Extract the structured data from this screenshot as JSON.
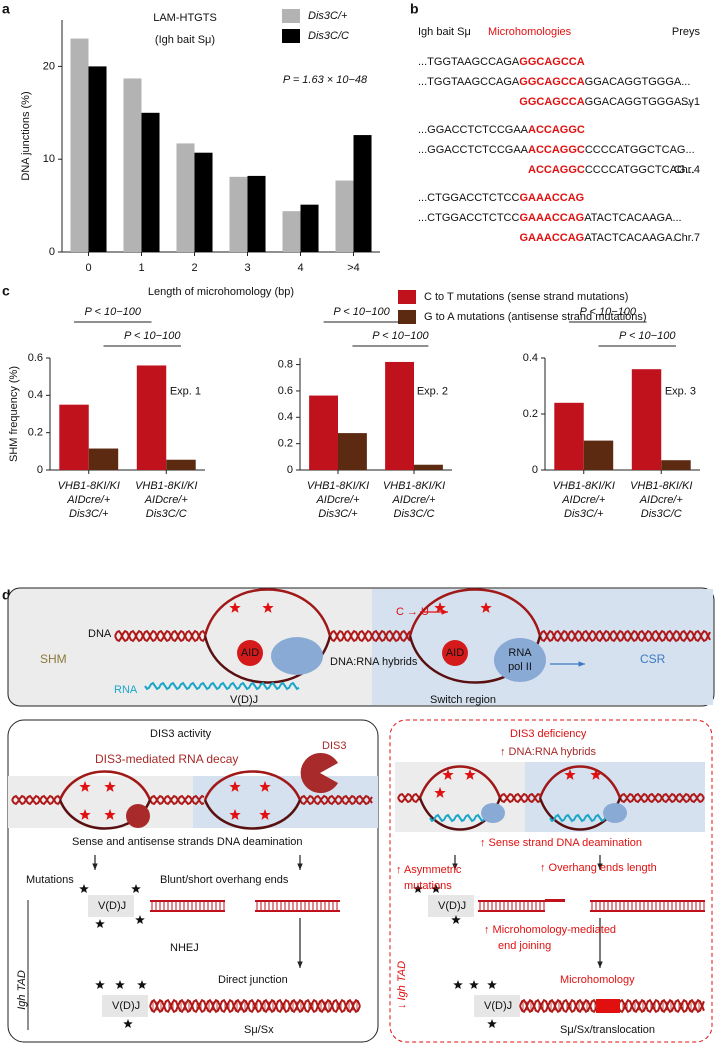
{
  "panel_labels": [
    "a",
    "b",
    "c",
    "d"
  ],
  "chart_data": [
    {
      "type": "bar",
      "annotations": [
        "LAM-HTGTS",
        "(Igh bait Sμ)",
        "P = 1.63 × 10−48"
      ],
      "categories": [
        "0",
        "1",
        "2",
        "3",
        "4",
        ">4"
      ],
      "series": [
        {
          "name": "Dis3C/+",
          "color": "#b3b3b3",
          "values": [
            23,
            18.7,
            11.7,
            8.1,
            4.4,
            7.7
          ]
        },
        {
          "name": "Dis3C/C",
          "color": "#000000",
          "values": [
            20,
            15,
            10.7,
            8.2,
            5.1,
            12.6
          ]
        }
      ],
      "xlabel": "Length of microhomology (bp)",
      "ylabel": "DNA junctions (%)",
      "ylim": [
        0,
        25
      ],
      "yticks": [
        0,
        10,
        20
      ]
    },
    {
      "type": "bar",
      "annotations": [
        "P < 10−100",
        "P < 10−100",
        "Exp. 1"
      ],
      "categories": [
        [
          "VHB1-8KI/KI",
          "AIDcre/+",
          "Dis3C/+"
        ],
        [
          "VHB1-8KI/KI",
          "AIDcre/+",
          "Dis3C/C"
        ]
      ],
      "series": [
        {
          "name": "C to T mutations (sense strand mutations)",
          "color": "#c0121c",
          "values": [
            0.35,
            0.56
          ]
        },
        {
          "name": "G to A mutations (antisense strand mutations)",
          "color": "#5b2a10",
          "values": [
            0.115,
            0.055
          ]
        }
      ],
      "ylabel": "SHM frequency (%)",
      "ylim": [
        0,
        0.6
      ],
      "yticks": [
        0,
        0.2,
        0.4,
        0.6
      ]
    },
    {
      "type": "bar",
      "annotations": [
        "P < 10−100",
        "P < 10−100",
        "Exp. 2"
      ],
      "categories": [
        [
          "VHB1-8KI/KI",
          "AIDcre/+",
          "Dis3C/+"
        ],
        [
          "VHB1-8KI/KI",
          "AIDcre/+",
          "Dis3C/C"
        ]
      ],
      "series": [
        {
          "color": "#c0121c",
          "values": [
            0.565,
            0.82
          ]
        },
        {
          "color": "#5b2a10",
          "values": [
            0.28,
            0.04
          ]
        }
      ],
      "ylim": [
        0,
        0.85
      ],
      "yticks": [
        0,
        0.2,
        0.4,
        0.6,
        0.8
      ]
    },
    {
      "type": "bar",
      "annotations": [
        "P < 10−100",
        "P < 10−100",
        "Exp. 3"
      ],
      "categories": [
        [
          "VHB1-8KI/KI",
          "AIDcre/+",
          "Dis3C/+"
        ],
        [
          "VHB1-8KI/KI",
          "AIDcre/+",
          "Dis3C/C"
        ]
      ],
      "series": [
        {
          "color": "#c0121c",
          "values": [
            0.24,
            0.36
          ]
        },
        {
          "color": "#5b2a10",
          "values": [
            0.105,
            0.035
          ]
        }
      ],
      "ylim": [
        0,
        0.4
      ],
      "yticks": [
        0,
        0.2,
        0.4
      ]
    }
  ],
  "sequences": {
    "headers": [
      "Igh bait Sμ",
      "Microhomologies",
      "Preys"
    ],
    "groups": [
      {
        "prey": "Sγ1",
        "lines": [
          [
            {
              "text": "...TGGTAAGCCAGA"
            },
            {
              "text": "GGCAGCCA",
              "highlight": true
            }
          ],
          [
            {
              "text": "...TGGTAAGCCAGA"
            },
            {
              "text": "GGCAGCCA",
              "highlight": true
            },
            {
              "text": "GGACAGGTGGGA..."
            }
          ],
          [
            {
              "text": "GGCAGCCA",
              "highlight": true
            },
            {
              "text": "GGACAGGTGGGA..."
            }
          ]
        ]
      },
      {
        "prey": "Chr.4",
        "lines": [
          [
            {
              "text": "...GGACCTCTCCGAA"
            },
            {
              "text": "ACCAGGC",
              "highlight": true
            }
          ],
          [
            {
              "text": "...GGACCTCTCCGAA"
            },
            {
              "text": "ACCAGGC",
              "highlight": true
            },
            {
              "text": "CCCCATGGCTCAG..."
            }
          ],
          [
            {
              "text": "ACCAGGC",
              "highlight": true
            },
            {
              "text": "CCCCATGGCTCAG..."
            }
          ]
        ]
      },
      {
        "prey": "Chr.7",
        "lines": [
          [
            {
              "text": "...CTGGACCTCTCC"
            },
            {
              "text": "GAAACCAG",
              "highlight": true
            }
          ],
          [
            {
              "text": "...CTGGACCTCTCC"
            },
            {
              "text": "GAAACCAG",
              "highlight": true
            },
            {
              "text": "ATACTCACAAGA..."
            }
          ],
          [
            {
              "text": "GAAACCAG",
              "highlight": true
            },
            {
              "text": "ATACTCACAAGA..."
            }
          ]
        ]
      }
    ]
  },
  "diagram": {
    "top": {
      "shm": "SHM",
      "csr": "CSR",
      "dna": "DNA",
      "rna": "RNA",
      "aid_1": "AID",
      "aid_2": "AID",
      "hybrids": "DNA:RNA hybrids",
      "pol_1": "RNA",
      "pol_2": "pol II",
      "vdj": "V(D)J",
      "switch": "Switch region",
      "cu": "C → U"
    },
    "left": {
      "title": "DIS3 activity",
      "decay": "DIS3-mediated RNA decay",
      "dis3": "DIS3",
      "deamination": "Sense and antisense strands DNA deamination",
      "mutations": "Mutations",
      "ends": "Blunt/short overhang ends",
      "vdj_1": "V(D)J",
      "nhej": "NHEJ",
      "junction": "Direct junction",
      "vdj_2": "V(D)J",
      "switch": "Sμ/Sx",
      "tad": "Igh TAD"
    },
    "right": {
      "title": "DIS3 deficiency",
      "hybrids": "↑ DNA:RNA hybrids",
      "deamination": "↑ Sense strand DNA deamination",
      "asym_1": "↑ Asymmetric",
      "asym_2": "mutations",
      "ends": "↑ Overhang ends length",
      "vdj_1": "V(D)J",
      "mmej_1": "↑ Microhomology-mediated",
      "mmej_2": "end joining",
      "micro": "Microhomology",
      "vdj_2": "V(D)J",
      "switch": "Sμ/Sx/translocation",
      "tad": "↓ Igh TAD"
    }
  }
}
